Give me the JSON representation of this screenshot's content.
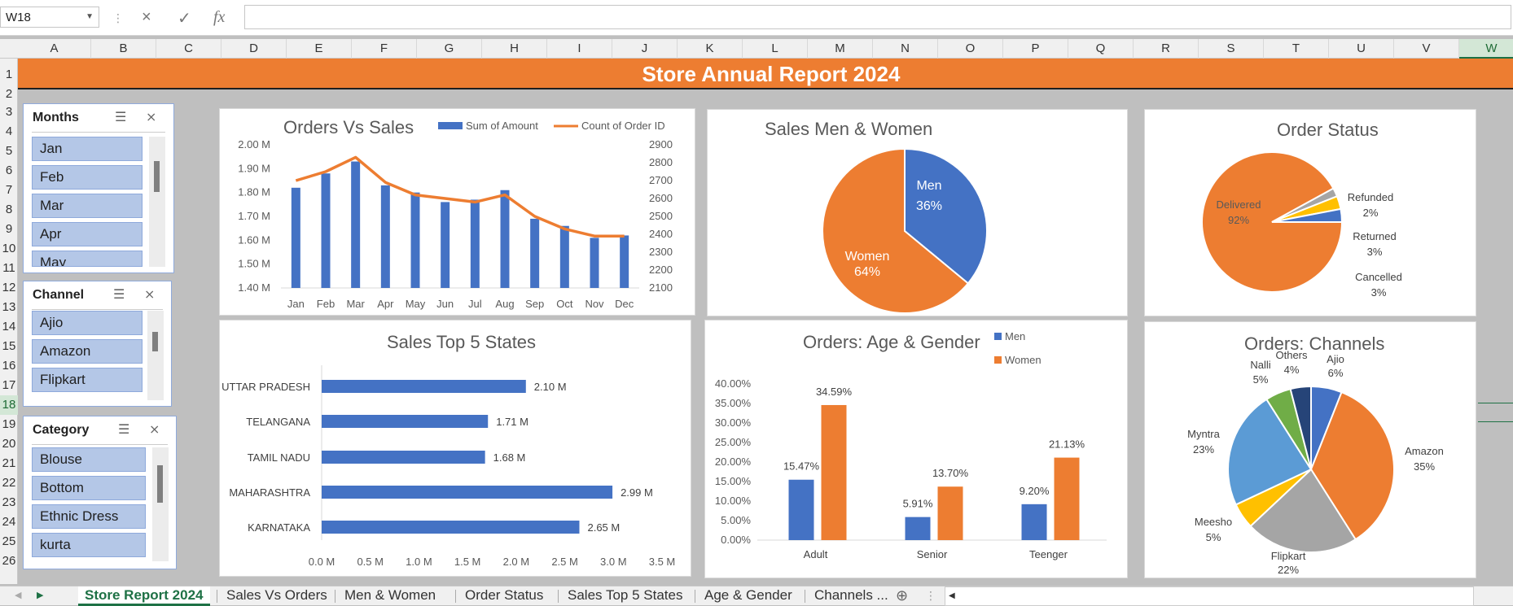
{
  "formula_bar": {
    "name_box": "W18",
    "cancel_icon": "×",
    "enter_icon": "✓",
    "fx_label": "fx",
    "formula": ""
  },
  "columns": [
    "A",
    "B",
    "C",
    "D",
    "E",
    "F",
    "G",
    "H",
    "I",
    "J",
    "K",
    "L",
    "M",
    "N",
    "O",
    "P",
    "Q",
    "R",
    "S",
    "T",
    "U",
    "V",
    "W"
  ],
  "active_column": "W",
  "rows": [
    "1",
    "2",
    "3",
    "4",
    "5",
    "6",
    "7",
    "8",
    "9",
    "10",
    "11",
    "12",
    "13",
    "14",
    "15",
    "16",
    "17",
    "18",
    "19",
    "20",
    "21",
    "22",
    "23",
    "24",
    "25",
    "26"
  ],
  "active_row": "18",
  "banner_title": "Store Annual Report 2024",
  "colors": {
    "orange": "#ED7D31",
    "blue": "#4472C4",
    "gray": "#A5A5A5",
    "yellow": "#FFC000",
    "lightblue": "#5B9BD5",
    "green": "#70AD47",
    "navy": "#264478"
  },
  "slicers": {
    "months": {
      "title": "Months",
      "items": [
        "Jan",
        "Feb",
        "Mar",
        "Apr",
        "May"
      ]
    },
    "channel": {
      "title": "Channel",
      "items": [
        "Ajio",
        "Amazon",
        "Flipkart"
      ]
    },
    "category": {
      "title": "Category",
      "items": [
        "Blouse",
        "Bottom",
        "Ethnic Dress",
        "kurta"
      ]
    }
  },
  "charts": {
    "orders_vs_sales": {
      "title": "Orders Vs Sales",
      "legend_bar": "Sum of Amount",
      "legend_line": "Count of Order ID"
    },
    "sales_gender": {
      "title": "Sales Men & Women"
    },
    "order_status": {
      "title": "Order Status"
    },
    "top_states": {
      "title": "Sales Top 5 States"
    },
    "age_gender": {
      "title": "Orders: Age & Gender",
      "legend_men": "Men",
      "legend_women": "Women"
    },
    "channels": {
      "title": "Orders: Channels"
    }
  },
  "chart_data": [
    {
      "type": "bar",
      "title": "Orders Vs Sales",
      "categories": [
        "Jan",
        "Feb",
        "Mar",
        "Apr",
        "May",
        "Jun",
        "Jul",
        "Aug",
        "Sep",
        "Oct",
        "Nov",
        "Dec"
      ],
      "series": [
        {
          "name": "Sum of Amount",
          "type": "bar",
          "axis": "left",
          "values": [
            1.82,
            1.88,
            1.93,
            1.83,
            1.8,
            1.76,
            1.77,
            1.81,
            1.69,
            1.66,
            1.61,
            1.62
          ]
        },
        {
          "name": "Count of Order ID",
          "type": "line",
          "axis": "right",
          "values": [
            2700,
            2750,
            2830,
            2690,
            2620,
            2600,
            2580,
            2620,
            2500,
            2430,
            2390,
            2390
          ]
        }
      ],
      "y_left": {
        "ylim": [
          1.4,
          2.0
        ],
        "ticks": [
          "1.40 M",
          "1.50 M",
          "1.60 M",
          "1.70 M",
          "1.80 M",
          "1.90 M",
          "2.00 M"
        ]
      },
      "y_right": {
        "ylim": [
          2100,
          2900
        ],
        "ticks": [
          "2100",
          "2200",
          "2300",
          "2400",
          "2500",
          "2600",
          "2700",
          "2800",
          "2900"
        ]
      },
      "legend": "top"
    },
    {
      "type": "pie",
      "title": "Sales Men & Women",
      "labels": [
        "Men",
        "Women"
      ],
      "values": [
        36,
        64
      ],
      "value_labels": [
        "36%",
        "64%"
      ]
    },
    {
      "type": "pie",
      "title": "Order Status",
      "labels": [
        "Delivered",
        "Refunded",
        "Returned",
        "Cancelled"
      ],
      "values": [
        92,
        2,
        3,
        3
      ],
      "value_labels": [
        "92%",
        "2%",
        "3%",
        "3%"
      ]
    },
    {
      "type": "bar",
      "orientation": "horizontal",
      "title": "Sales Top 5 States",
      "categories": [
        "UTTAR PRADESH",
        "TELANGANA",
        "TAMIL NADU",
        "MAHARASHTRA",
        "KARNATAKA"
      ],
      "values": [
        2.1,
        1.71,
        1.68,
        2.99,
        2.65
      ],
      "value_labels": [
        "2.10 M",
        "1.71 M",
        "1.68 M",
        "2.99 M",
        "2.65 M"
      ],
      "xlim": [
        0,
        3.5
      ],
      "x_ticks": [
        "0.0 M",
        "0.5 M",
        "1.0 M",
        "1.5 M",
        "2.0 M",
        "2.5 M",
        "3.0 M",
        "3.5 M"
      ]
    },
    {
      "type": "bar",
      "title": "Orders: Age & Gender",
      "categories": [
        "Adult",
        "Senior",
        "Teenger"
      ],
      "series": [
        {
          "name": "Men",
          "values": [
            15.47,
            5.91,
            9.2
          ],
          "value_labels": [
            "15.47%",
            "5.91%",
            "9.20%"
          ]
        },
        {
          "name": "Women",
          "values": [
            34.59,
            13.7,
            21.13
          ],
          "value_labels": [
            "34.59%",
            "13.70%",
            "21.13%"
          ]
        }
      ],
      "ylim": [
        0,
        40
      ],
      "y_ticks": [
        "0.00%",
        "5.00%",
        "10.00%",
        "15.00%",
        "20.00%",
        "25.00%",
        "30.00%",
        "35.00%",
        "40.00%"
      ],
      "legend": "top-right"
    },
    {
      "type": "pie",
      "title": "Orders: Channels",
      "labels": [
        "Ajio",
        "Amazon",
        "Flipkart",
        "Meesho",
        "Myntra",
        "Nalli",
        "Others"
      ],
      "values": [
        6,
        35,
        22,
        5,
        23,
        5,
        4
      ],
      "value_labels": [
        "6%",
        "35%",
        "22%",
        "5%",
        "23%",
        "5%",
        "4%"
      ]
    }
  ],
  "sheet_tabs": [
    "Store Report 2024",
    "Sales Vs Orders",
    "Men & Women",
    "Order Status",
    "Sales Top 5 States",
    "Age & Gender",
    "Channels ..."
  ],
  "active_tab": "Store Report 2024"
}
